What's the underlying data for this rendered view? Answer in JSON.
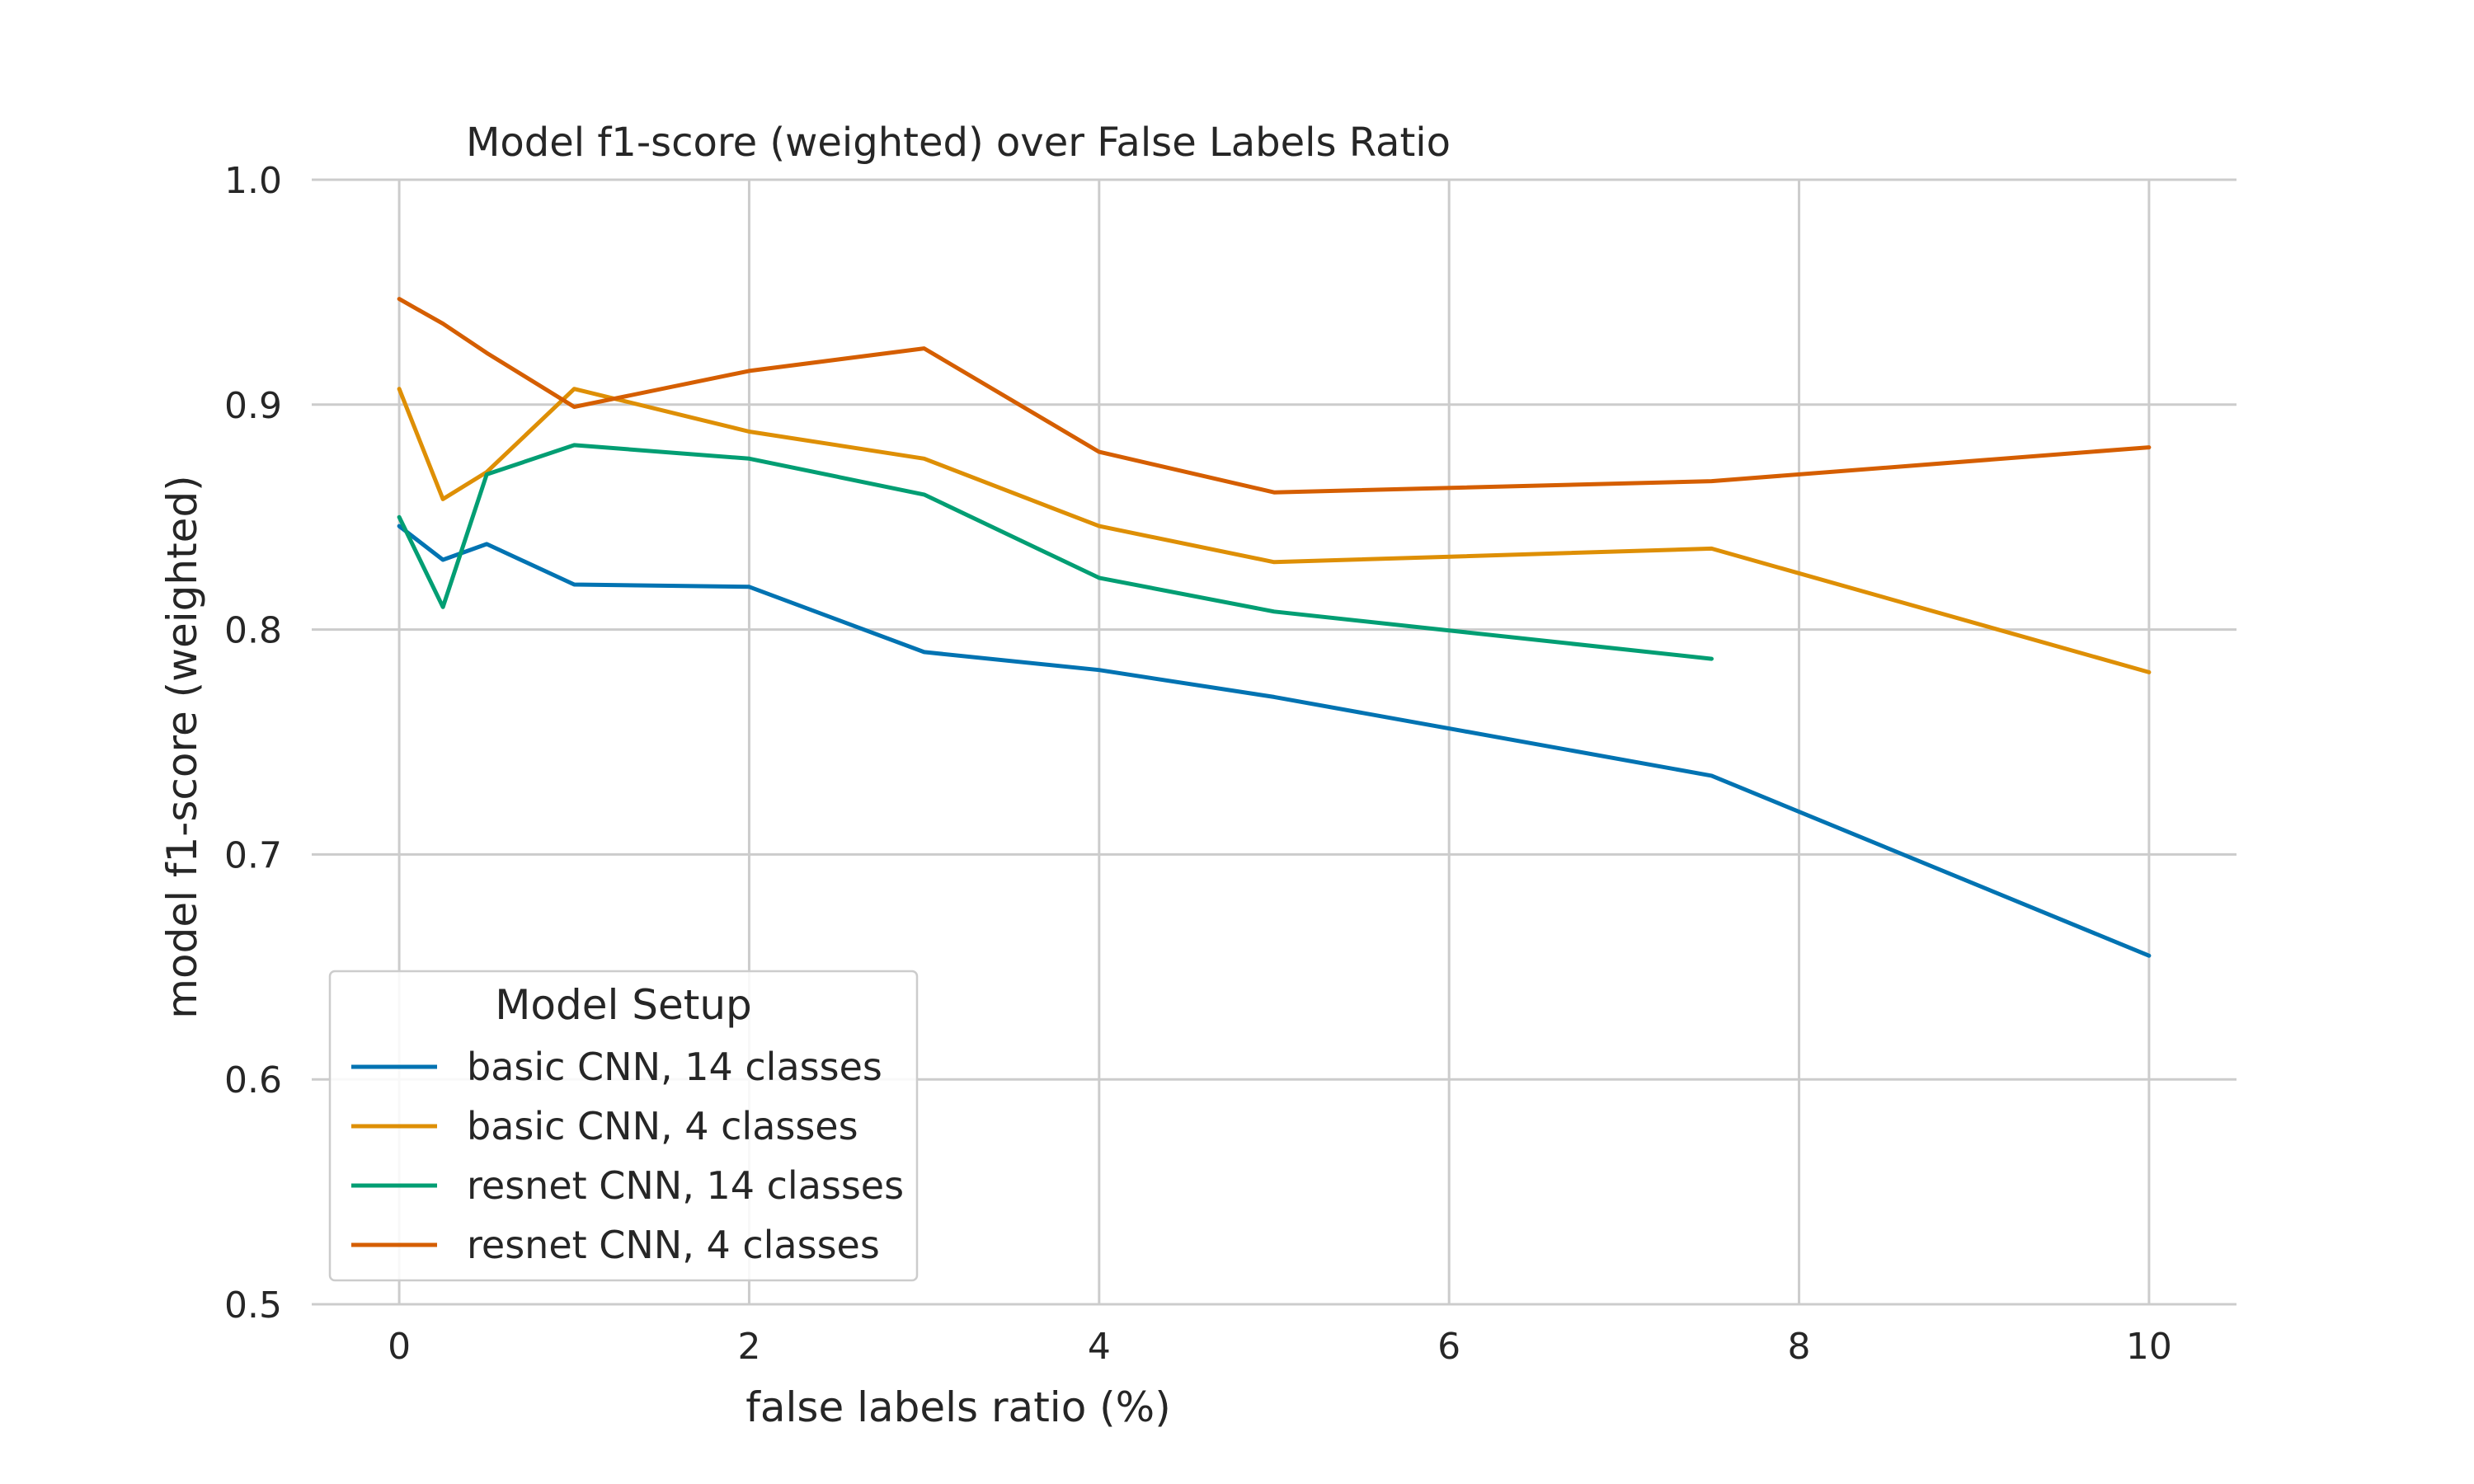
{
  "chart_data": {
    "type": "line",
    "title": "Model f1-score (weighted) over False Labels Ratio",
    "xlabel": "false labels ratio (%)",
    "ylabel": "model f1-score (weighted)",
    "xlim": [
      -0.5,
      10.5
    ],
    "ylim": [
      0.5,
      1.0
    ],
    "xticks": [
      0,
      2,
      4,
      6,
      8,
      10
    ],
    "xtick_labels": [
      "0",
      "2",
      "4",
      "6",
      "8",
      "10"
    ],
    "yticks": [
      0.5,
      0.6,
      0.7,
      0.8,
      0.9,
      1.0
    ],
    "ytick_labels": [
      "0.5",
      "0.6",
      "0.7",
      "0.8",
      "0.9",
      "1.0"
    ],
    "grid": true,
    "legend": {
      "title": "Model Setup",
      "placement": "lower-left"
    },
    "series": [
      {
        "name": "basic CNN, 14 classes",
        "color": "#0173b2",
        "points": [
          [
            0,
            0.846
          ],
          [
            0.25,
            0.831
          ],
          [
            0.5,
            0.838
          ],
          [
            1,
            0.82
          ],
          [
            2,
            0.819
          ],
          [
            3,
            0.79
          ],
          [
            4,
            0.782
          ],
          [
            5,
            0.77
          ],
          [
            7.5,
            0.735
          ],
          [
            10,
            0.655
          ]
        ]
      },
      {
        "name": "basic CNN, 4 classes",
        "color": "#de8f05",
        "points": [
          [
            0,
            0.907
          ],
          [
            0.25,
            0.858
          ],
          [
            0.5,
            0.87
          ],
          [
            1,
            0.907
          ],
          [
            2,
            0.888
          ],
          [
            3,
            0.876
          ],
          [
            4,
            0.846
          ],
          [
            5,
            0.83
          ],
          [
            7.5,
            0.836
          ],
          [
            10,
            0.781
          ]
        ]
      },
      {
        "name": "resnet CNN, 14 classes",
        "color": "#029e73",
        "points": [
          [
            0,
            0.85
          ],
          [
            0.25,
            0.81
          ],
          [
            0.5,
            0.869
          ],
          [
            1,
            0.882
          ],
          [
            2,
            0.876
          ],
          [
            3,
            0.86
          ],
          [
            4,
            0.823
          ],
          [
            5,
            0.808
          ],
          [
            7.5,
            0.787
          ]
        ]
      },
      {
        "name": "resnet CNN, 4 classes",
        "color": "#d55e00",
        "points": [
          [
            0,
            0.947
          ],
          [
            0.25,
            0.936
          ],
          [
            0.5,
            0.923
          ],
          [
            1,
            0.899
          ],
          [
            2,
            0.915
          ],
          [
            3,
            0.925
          ],
          [
            4,
            0.879
          ],
          [
            5,
            0.861
          ],
          [
            7.5,
            0.866
          ],
          [
            10,
            0.881
          ]
        ]
      }
    ]
  }
}
